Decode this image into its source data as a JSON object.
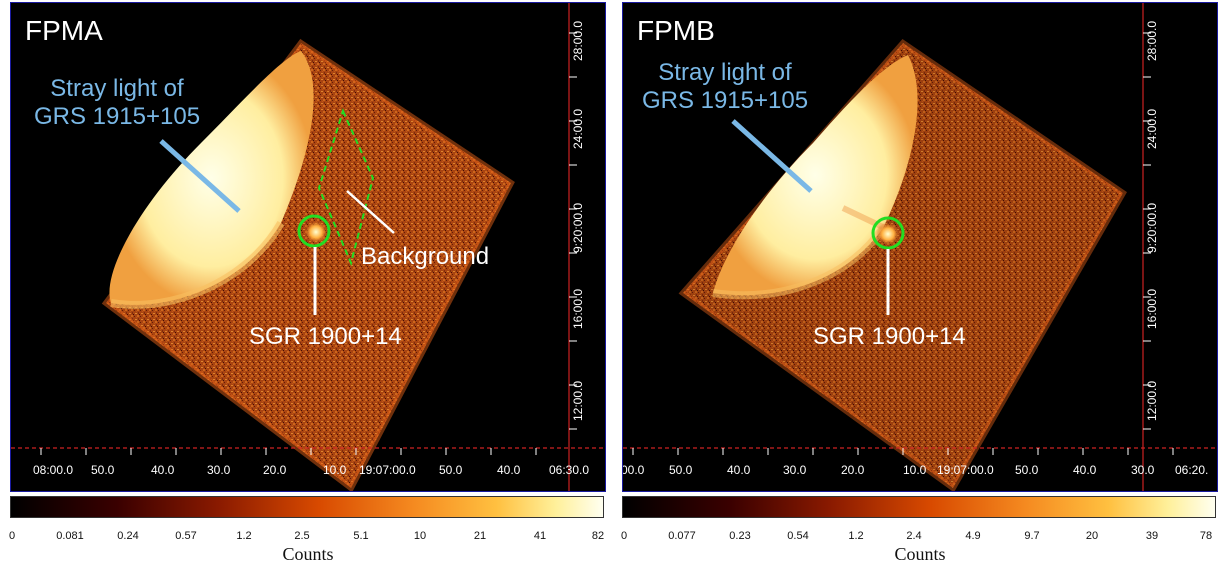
{
  "panels": [
    {
      "title": "FPMA",
      "stray_label_line1": "Stray light of",
      "stray_label_line2": "GRS 1915+105",
      "background_label": "Background",
      "source_label": "SGR 1900+14",
      "x_ticks": [
        "08:00.0",
        "50.0",
        "40.0",
        "30.0",
        "20.0",
        "10.0",
        "19:07:00.0",
        "50.0",
        "40.0",
        "06:30.0"
      ],
      "y_ticks": [
        "28:00.0",
        "24:00.0",
        "9:20:00.0",
        "16:00.0",
        "12:00.0"
      ],
      "colorbar_ticks": [
        "0",
        "0.081",
        "0.24",
        "0.57",
        "1.2",
        "2.5",
        "5.1",
        "10",
        "21",
        "41",
        "82"
      ],
      "colorbar_label": "Counts"
    },
    {
      "title": "FPMB",
      "stray_label_line1": "Stray light of",
      "stray_label_line2": "GRS 1915+105",
      "source_label": "SGR 1900+14",
      "x_ticks": [
        "00.0",
        "50.0",
        "40.0",
        "30.0",
        "20.0",
        "10.0",
        "19:07:00.0",
        "50.0",
        "40.0",
        "30.0",
        "06:20."
      ],
      "y_ticks": [
        "28:00.0",
        "24:00.0",
        "9:20:00.0",
        "16:00.0",
        "12:00.0"
      ],
      "colorbar_ticks": [
        "0",
        "0.077",
        "0.23",
        "0.54",
        "1.2",
        "2.4",
        "4.9",
        "9.7",
        "20",
        "39",
        "78"
      ],
      "colorbar_label": "Counts"
    }
  ],
  "colors": {
    "stray_light": "#7ab8e6",
    "region": "#22dd22",
    "crosshair": "#cc2222",
    "frame": "#1a1aa0"
  }
}
